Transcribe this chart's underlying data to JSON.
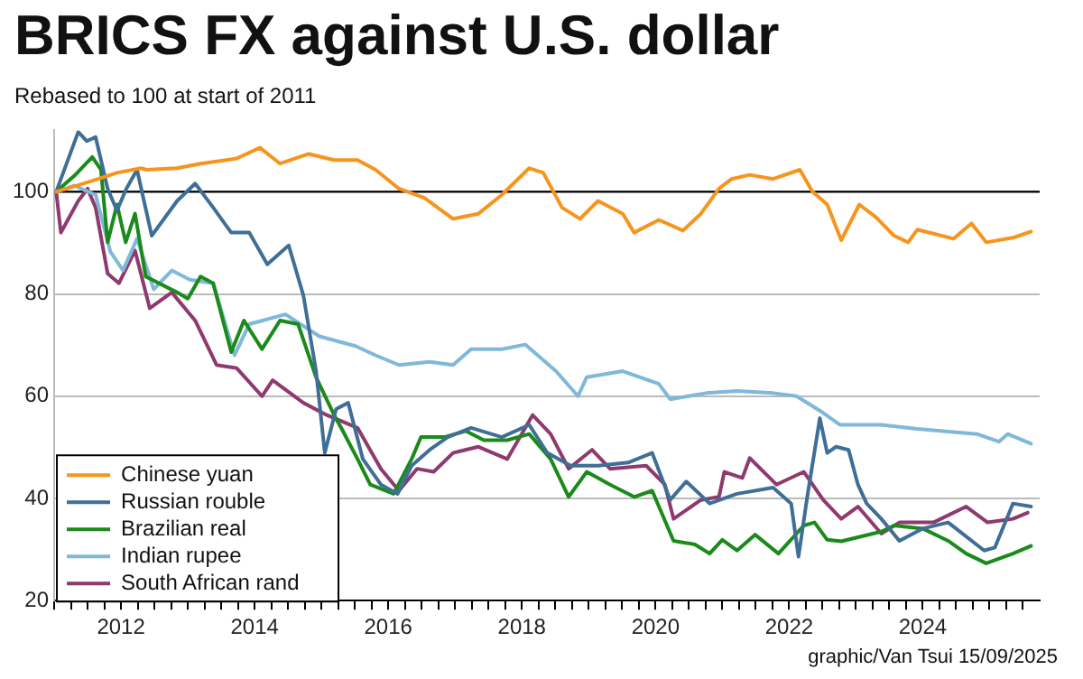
{
  "chart_data": {
    "type": "line",
    "title": "BRICS FX against U.S. dollar",
    "subtitle": "Rebased to 100 at start of 2011",
    "annotations": [
      "graphic/Van Tsui 15/09/2025"
    ],
    "xlim": [
      2011,
      2025.75
    ],
    "ylim": [
      20,
      112
    ],
    "yticks": [
      20,
      40,
      60,
      80,
      100
    ],
    "xticks": [
      {
        "value": 2011,
        "label": null
      },
      {
        "value": 2011.25,
        "label": null
      },
      {
        "value": 2011.5,
        "label": null
      },
      {
        "value": 2011.75,
        "label": null
      },
      {
        "value": 2012,
        "label": "2012"
      },
      {
        "value": 2012.25,
        "label": null
      },
      {
        "value": 2012.5,
        "label": null
      },
      {
        "value": 2012.75,
        "label": null
      },
      {
        "value": 2013,
        "label": null
      },
      {
        "value": 2013.25,
        "label": null
      },
      {
        "value": 2013.5,
        "label": null
      },
      {
        "value": 2013.75,
        "label": null
      },
      {
        "value": 2014,
        "label": "2014"
      },
      {
        "value": 2014.25,
        "label": null
      },
      {
        "value": 2014.5,
        "label": null
      },
      {
        "value": 2014.75,
        "label": null
      },
      {
        "value": 2015,
        "label": null
      },
      {
        "value": 2015.25,
        "label": null
      },
      {
        "value": 2015.5,
        "label": null
      },
      {
        "value": 2015.75,
        "label": null
      },
      {
        "value": 2016,
        "label": "2016"
      },
      {
        "value": 2016.25,
        "label": null
      },
      {
        "value": 2016.5,
        "label": null
      },
      {
        "value": 2016.75,
        "label": null
      },
      {
        "value": 2017,
        "label": null
      },
      {
        "value": 2017.25,
        "label": null
      },
      {
        "value": 2017.5,
        "label": null
      },
      {
        "value": 2017.75,
        "label": null
      },
      {
        "value": 2018,
        "label": "2018"
      },
      {
        "value": 2018.25,
        "label": null
      },
      {
        "value": 2018.5,
        "label": null
      },
      {
        "value": 2018.75,
        "label": null
      },
      {
        "value": 2019,
        "label": null
      },
      {
        "value": 2019.25,
        "label": null
      },
      {
        "value": 2019.5,
        "label": null
      },
      {
        "value": 2019.75,
        "label": null
      },
      {
        "value": 2020,
        "label": "2020"
      },
      {
        "value": 2020.25,
        "label": null
      },
      {
        "value": 2020.5,
        "label": null
      },
      {
        "value": 2020.75,
        "label": null
      },
      {
        "value": 2021,
        "label": null
      },
      {
        "value": 2021.25,
        "label": null
      },
      {
        "value": 2021.5,
        "label": null
      },
      {
        "value": 2021.75,
        "label": null
      },
      {
        "value": 2022,
        "label": "2022"
      },
      {
        "value": 2022.25,
        "label": null
      },
      {
        "value": 2022.5,
        "label": null
      },
      {
        "value": 2022.75,
        "label": null
      },
      {
        "value": 2023,
        "label": null
      },
      {
        "value": 2023.25,
        "label": null
      },
      {
        "value": 2023.5,
        "label": null
      },
      {
        "value": 2023.75,
        "label": null
      },
      {
        "value": 2024,
        "label": "2024"
      },
      {
        "value": 2024.25,
        "label": null
      },
      {
        "value": 2024.5,
        "label": null
      },
      {
        "value": 2024.75,
        "label": null
      },
      {
        "value": 2025,
        "label": null
      },
      {
        "value": 2025.25,
        "label": null
      },
      {
        "value": 2025.5,
        "label": null
      }
    ],
    "grid": "y",
    "legend": "bottom left",
    "marker": "none",
    "line_style": "solid",
    "ref_lines": [
      {
        "axis": "y",
        "value": 100,
        "color": "#000000"
      }
    ],
    "series": [
      {
        "name": "Chinese yuan",
        "color": "#f7941d",
        "x": [
          2011.03,
          2011.49,
          2011.94,
          2012.3,
          2012.38,
          2012.84,
          2013.19,
          2013.73,
          2014.08,
          2014.38,
          2014.81,
          2015.19,
          2015.54,
          2015.81,
          2016.16,
          2016.54,
          2016.97,
          2017.35,
          2017.7,
          2018.11,
          2018.32,
          2018.6,
          2018.87,
          2019.14,
          2019.51,
          2019.68,
          2020.05,
          2020.41,
          2020.68,
          2020.95,
          2021.14,
          2021.41,
          2021.76,
          2022.16,
          2022.35,
          2022.57,
          2022.78,
          2023.05,
          2023.3,
          2023.57,
          2023.78,
          2023.92,
          2024.46,
          2024.73,
          2024.95,
          2025.35,
          2025.62
        ],
        "values": [
          100,
          101.8,
          103.7,
          104.6,
          104.3,
          104.6,
          105.5,
          106.5,
          108.6,
          105.5,
          107.4,
          106.2,
          106.2,
          104.3,
          100.6,
          98.8,
          94.7,
          95.7,
          99.4,
          104.6,
          103.7,
          96.9,
          94.7,
          98.2,
          95.7,
          92,
          94.5,
          92.4,
          95.7,
          100.6,
          102.5,
          103.3,
          102.5,
          104.3,
          100,
          97.5,
          90.5,
          97.5,
          95,
          91.4,
          90.1,
          92.6,
          90.8,
          93.8,
          90.1,
          91,
          92.2
        ]
      },
      {
        "name": "Russian rouble",
        "color": "#3f6e96",
        "x": [
          2011.03,
          2011.36,
          2011.49,
          2011.62,
          2011.8,
          2011.94,
          2012.08,
          2012.24,
          2012.46,
          2012.84,
          2013.11,
          2013.38,
          2013.65,
          2013.92,
          2014.19,
          2014.51,
          2014.73,
          2014.92,
          2015.05,
          2015.22,
          2015.4,
          2015.62,
          2015.89,
          2016.14,
          2016.35,
          2016.62,
          2016.89,
          2017.24,
          2017.7,
          2018.11,
          2018.38,
          2018.73,
          2019.14,
          2019.59,
          2019.95,
          2020.22,
          2020.46,
          2020.81,
          2021.22,
          2021.76,
          2022.03,
          2022.14,
          2022.27,
          2022.46,
          2022.57,
          2022.7,
          2022.89,
          2023.03,
          2023.16,
          2023.38,
          2023.65,
          2024,
          2024.38,
          2024.92,
          2025.08,
          2025.35,
          2025.62
        ],
        "values": [
          100,
          111.7,
          109.9,
          110.7,
          100.6,
          96.3,
          100.6,
          104.3,
          91.4,
          98.2,
          101.6,
          96.9,
          92,
          92,
          85.8,
          89.5,
          79.7,
          64.9,
          48.9,
          57.5,
          58.7,
          47.7,
          42.7,
          40.9,
          46.4,
          49.5,
          52,
          53.8,
          52,
          54.4,
          48.9,
          46.4,
          46.4,
          47,
          48.9,
          39.7,
          43.3,
          39,
          40.9,
          42.1,
          39,
          28.6,
          40.2,
          55.7,
          48.9,
          50.1,
          49.5,
          42.7,
          39,
          36,
          31.7,
          34.1,
          35.3,
          29.8,
          30.4,
          39,
          38.4
        ]
      },
      {
        "name": "Brazilian real",
        "color": "#1a8a1a",
        "x": [
          2011.03,
          2011.3,
          2011.57,
          2011.7,
          2011.8,
          2011.94,
          2012.07,
          2012.21,
          2012.37,
          2012.84,
          2013,
          2013.19,
          2013.38,
          2013.65,
          2013.84,
          2014.11,
          2014.38,
          2014.65,
          2014.92,
          2015.19,
          2015.32,
          2015.54,
          2015.73,
          2016.08,
          2016.35,
          2016.49,
          2016.84,
          2017.16,
          2017.43,
          2017.78,
          2018.11,
          2018.43,
          2018.7,
          2018.97,
          2019.32,
          2019.68,
          2019.95,
          2020.27,
          2020.59,
          2020.81,
          2021,
          2021.22,
          2021.49,
          2021.84,
          2022.22,
          2022.38,
          2022.57,
          2022.78,
          2023.38,
          2023.57,
          2024,
          2024.38,
          2024.65,
          2024.95,
          2025.35,
          2025.62
        ],
        "values": [
          100,
          103.1,
          106.8,
          104.3,
          90.1,
          97.5,
          90.1,
          95.7,
          83.4,
          80.3,
          79.1,
          83.4,
          82.1,
          68.6,
          74.8,
          69.2,
          74.8,
          74.1,
          63.7,
          56.3,
          53.2,
          47.7,
          42.7,
          40.9,
          47.7,
          52,
          52,
          53.2,
          51.4,
          51.4,
          52.6,
          47.7,
          40.3,
          45.2,
          42.7,
          40.3,
          41.5,
          31.7,
          31,
          29.2,
          31.9,
          29.8,
          32.9,
          29.2,
          34.7,
          35.3,
          31.9,
          31.6,
          33.5,
          34.7,
          34.1,
          31.7,
          29.2,
          27.3,
          29.2,
          30.7
        ]
      },
      {
        "name": "Indian rupee",
        "color": "#7fb8d8",
        "x": [
          2011.03,
          2011.3,
          2011.62,
          2011.84,
          2012.03,
          2012.24,
          2012.49,
          2012.76,
          2013.03,
          2013.38,
          2013.7,
          2013.92,
          2014.46,
          2014.97,
          2015.51,
          2015.81,
          2016.16,
          2016.62,
          2016.97,
          2017.24,
          2017.7,
          2018.05,
          2018.51,
          2018.84,
          2018.97,
          2019.51,
          2020.05,
          2020.22,
          2020.76,
          2021.22,
          2021.76,
          2022.11,
          2022.49,
          2022.76,
          2023.38,
          2023.92,
          2024.81,
          2025.14,
          2025.27,
          2025.62
        ],
        "values": [
          100,
          101.2,
          99.4,
          88.3,
          84.6,
          90.8,
          80.9,
          84.6,
          82.8,
          82.1,
          68,
          74.1,
          76,
          71.7,
          69.8,
          68,
          66.1,
          66.7,
          66.1,
          69.2,
          69.2,
          70.1,
          64.9,
          60,
          63.7,
          64.9,
          62.4,
          59.4,
          60.6,
          61,
          60.6,
          60,
          56.9,
          54.4,
          54.4,
          53.6,
          52.6,
          51.1,
          52.6,
          50.7
        ]
      },
      {
        "name": "South African rand",
        "color": "#8e3a6e",
        "x": [
          2011.03,
          2011.1,
          2011.36,
          2011.5,
          2011.62,
          2011.8,
          2011.97,
          2012.21,
          2012.43,
          2012.76,
          2013.11,
          2013.43,
          2013.73,
          2014.11,
          2014.27,
          2014.73,
          2015.08,
          2015.54,
          2015.89,
          2016.16,
          2016.43,
          2016.68,
          2016.97,
          2017.35,
          2017.78,
          2018.16,
          2018.43,
          2018.7,
          2019.05,
          2019.32,
          2019.86,
          2020.14,
          2020.27,
          2020.68,
          2020.95,
          2021.03,
          2021.3,
          2021.41,
          2021.81,
          2022.22,
          2022.51,
          2022.78,
          2023.03,
          2023.38,
          2023.65,
          2024.16,
          2024.65,
          2024.97,
          2025.35,
          2025.57
        ],
        "values": [
          100,
          92,
          98.2,
          100.6,
          96.9,
          84,
          82.1,
          88.5,
          77.2,
          80.3,
          74.8,
          66.1,
          65.5,
          60,
          63.1,
          58.7,
          56.3,
          53.8,
          45.8,
          41.5,
          45.8,
          45.2,
          48.9,
          50.1,
          47.7,
          56.3,
          52.6,
          45.8,
          49.5,
          45.8,
          46.4,
          42.7,
          36,
          39.7,
          40.3,
          45.2,
          44,
          47.9,
          42.7,
          45.2,
          39.7,
          36,
          38.4,
          33.1,
          35.3,
          35.3,
          38.4,
          35.3,
          36,
          37.2
        ]
      }
    ]
  }
}
